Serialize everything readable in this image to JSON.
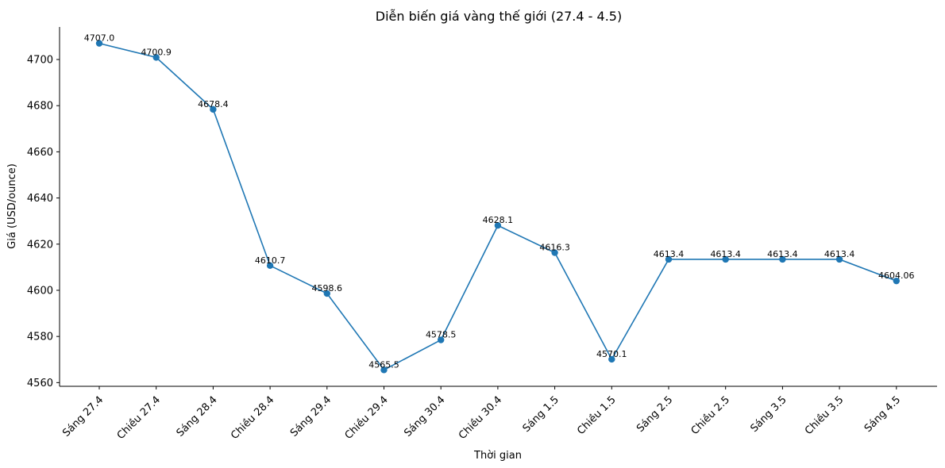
{
  "chart_data": {
    "type": "line",
    "title": "Diễn biến giá vàng thế giới (27.4 - 4.5)",
    "xlabel": "Thời gian",
    "ylabel": "Giá (USD/ounce)",
    "categories": [
      "Sáng 27.4",
      "Chiều 27.4",
      "Sáng 28.4",
      "Chiều 28.4",
      "Sáng 29.4",
      "Chiều 29.4",
      "Sáng 30.4",
      "Chiều 30.4",
      "Sáng 1.5",
      "Chiều 1.5",
      "Sáng 2.5",
      "Chiều 2.5",
      "Sáng 3.5",
      "Chiều 3.5",
      "Sáng 4.5"
    ],
    "values": [
      4707.0,
      4700.9,
      4678.4,
      4610.7,
      4598.6,
      4565.5,
      4578.5,
      4628.1,
      4616.3,
      4570.1,
      4613.4,
      4613.4,
      4613.4,
      4613.4,
      4604.06
    ],
    "data_labels": [
      "4707.0",
      "4700.9",
      "4678.4",
      "4610.7",
      "4598.6",
      "4565.5",
      "4578.5",
      "4628.1",
      "4616.3",
      "4570.1",
      "4613.4",
      "4613.4",
      "4613.4",
      "4613.4",
      "4604.06"
    ],
    "ylim": [
      4558.4,
      4714.1
    ],
    "yticks": [
      4560,
      4580,
      4600,
      4620,
      4640,
      4660,
      4680,
      4700
    ],
    "grid": false,
    "legend": "none",
    "line_color": "#1f77b4",
    "marker": "circle"
  }
}
